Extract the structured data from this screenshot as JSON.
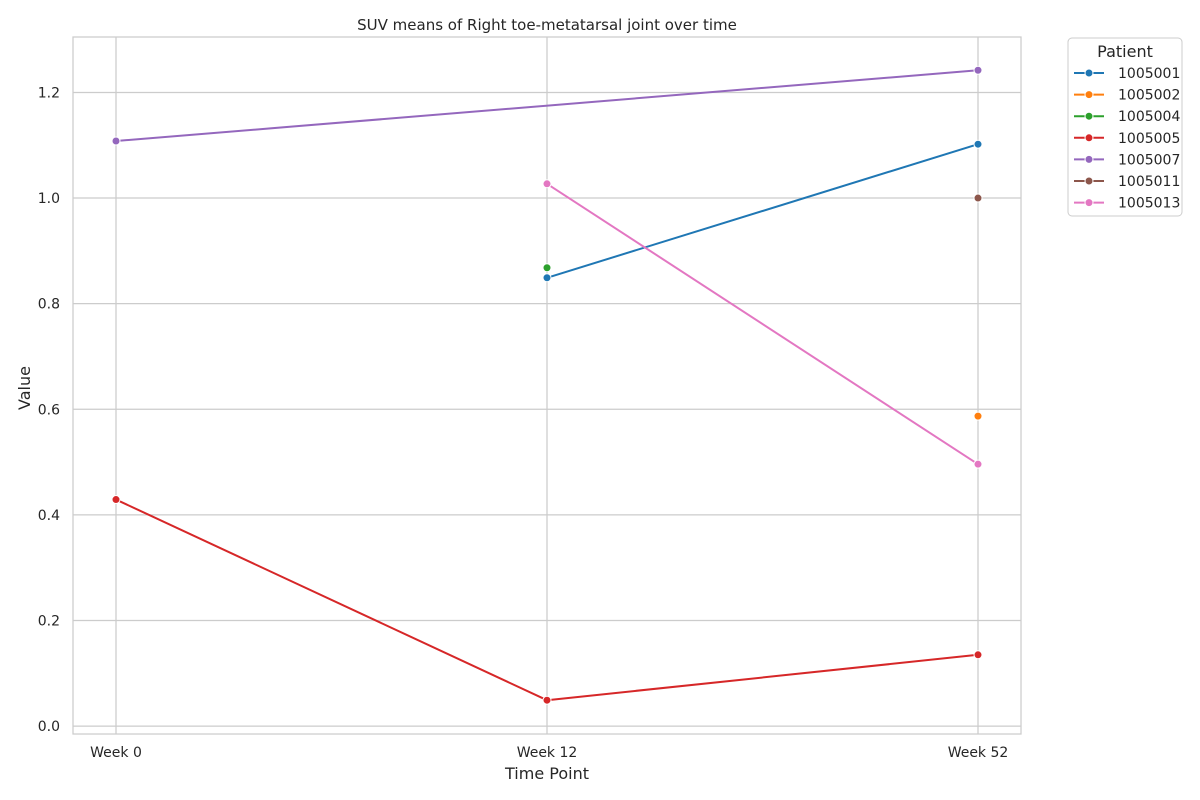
{
  "chart_data": {
    "type": "line",
    "title": "SUV means of Right toe-metatarsal joint over time",
    "xlabel": "Time Point",
    "ylabel": "Value",
    "categories": [
      "Week 0",
      "Week 12",
      "Week 52"
    ],
    "ylim": [
      -0.015,
      1.305
    ],
    "yticks": [
      "0.0",
      "0.2",
      "0.4",
      "0.6",
      "0.8",
      "1.0",
      "1.2"
    ],
    "grid": true,
    "legend": {
      "title": "Patient",
      "placement": "outside top-right"
    },
    "series": [
      {
        "name": "1005001",
        "color": "#1f77b4",
        "values": [
          null,
          0.849,
          1.102
        ]
      },
      {
        "name": "1005002",
        "color": "#ff7f0e",
        "values": [
          null,
          null,
          0.587
        ]
      },
      {
        "name": "1005004",
        "color": "#2ca02c",
        "values": [
          null,
          0.868,
          null
        ]
      },
      {
        "name": "1005005",
        "color": "#d62728",
        "values": [
          0.429,
          0.049,
          0.135
        ]
      },
      {
        "name": "1005007",
        "color": "#9467bd",
        "values": [
          1.108,
          null,
          1.242
        ]
      },
      {
        "name": "1005011",
        "color": "#8c564b",
        "values": [
          null,
          null,
          1.0
        ]
      },
      {
        "name": "1005013",
        "color": "#e377c2",
        "values": [
          null,
          1.027,
          0.496
        ]
      }
    ]
  }
}
